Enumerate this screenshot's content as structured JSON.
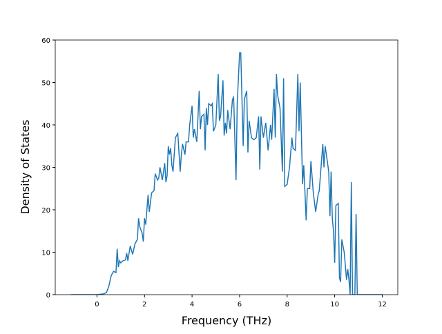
{
  "chart_data": {
    "type": "line",
    "xlabel": "Frequency (THz)",
    "ylabel": "Density of States",
    "xlim": [
      -1.755,
      12.655
    ],
    "ylim": [
      0,
      60
    ],
    "xticks": [
      0,
      2,
      4,
      6,
      8,
      10,
      12
    ],
    "yticks": [
      0,
      10,
      20,
      30,
      40,
      50,
      60
    ],
    "series": [
      {
        "color": "#1f77b4",
        "x": [
          -1.1,
          0,
          0.3,
          0.4,
          0.5,
          0.6,
          0.7,
          0.8,
          0.85,
          0.9,
          0.95,
          1.0,
          1.1,
          1.2,
          1.25,
          1.3,
          1.4,
          1.5,
          1.6,
          1.7,
          1.75,
          1.8,
          1.9,
          1.95,
          2.0,
          2.05,
          2.1,
          2.15,
          2.2,
          2.3,
          2.4,
          2.45,
          2.55,
          2.6,
          2.65,
          2.75,
          2.85,
          2.9,
          2.95,
          3.0,
          3.05,
          3.1,
          3.15,
          3.2,
          3.3,
          3.4,
          3.5,
          3.55,
          3.6,
          3.7,
          3.75,
          3.85,
          3.9,
          4.0,
          4.05,
          4.1,
          4.2,
          4.3,
          4.35,
          4.4,
          4.5,
          4.55,
          4.6,
          4.65,
          4.7,
          4.8,
          4.85,
          4.9,
          5.0,
          5.1,
          5.15,
          5.2,
          5.3,
          5.35,
          5.4,
          5.45,
          5.5,
          5.6,
          5.7,
          5.75,
          5.85,
          5.9,
          6.0,
          6.05,
          6.15,
          6.2,
          6.3,
          6.35,
          6.4,
          6.5,
          6.6,
          6.7,
          6.8,
          6.85,
          6.9,
          7.0,
          7.1,
          7.2,
          7.3,
          7.35,
          7.45,
          7.5,
          7.55,
          7.6,
          7.7,
          7.8,
          7.85,
          7.9,
          8.0,
          8.1,
          8.2,
          8.25,
          8.35,
          8.45,
          8.5,
          8.55,
          8.65,
          8.7,
          8.8,
          8.85,
          8.95,
          9.0,
          9.1,
          9.2,
          9.3,
          9.35,
          9.5,
          9.55,
          9.6,
          9.7,
          9.75,
          9.8,
          9.85,
          9.9,
          9.95,
          10.0,
          10.05,
          10.15,
          10.2,
          10.25,
          10.3,
          10.4,
          10.5,
          10.55,
          10.6,
          10.65,
          10.7,
          10.75,
          10.85,
          10.9,
          10.95,
          11.0,
          12.0
        ],
        "values": [
          0,
          0,
          0.2,
          0.5,
          2,
          4.5,
          5.5,
          5.2,
          10.8,
          6.5,
          8,
          7.5,
          8,
          8.2,
          9.8,
          8,
          11.5,
          9.5,
          12,
          13,
          18,
          16,
          14.5,
          12.5,
          18,
          16.5,
          20,
          23.5,
          19.5,
          24,
          24.5,
          28.5,
          27,
          27.5,
          30,
          27,
          31,
          26.5,
          28,
          35,
          33,
          34.5,
          30.5,
          29,
          37,
          38,
          29,
          33,
          35.5,
          33,
          36,
          36,
          40,
          44.5,
          37,
          39,
          36,
          48,
          39,
          42,
          42.5,
          34,
          44,
          40,
          45,
          44.5,
          45,
          38.5,
          40,
          52,
          41,
          42,
          50.5,
          37.5,
          40.5,
          38,
          43.5,
          39,
          46,
          46.5,
          27,
          45,
          57,
          57,
          35,
          46,
          48,
          33.5,
          41,
          37,
          36.5,
          37,
          42,
          29.5,
          42,
          37,
          40.5,
          34,
          40,
          36.5,
          48.5,
          37,
          52,
          47,
          44,
          29,
          51,
          25.5,
          26,
          30,
          37,
          34.5,
          34,
          52,
          38.5,
          50,
          26,
          30.5,
          17.5,
          25,
          25,
          31.5,
          24,
          19.5,
          23.5,
          24.5,
          35.5,
          30,
          35,
          31,
          29,
          18.5,
          29,
          18,
          15,
          7.5,
          21,
          21.5,
          4,
          3,
          13,
          10,
          3.5,
          6,
          3.5,
          0,
          26.5,
          0,
          0,
          19,
          0,
          0,
          0
        ]
      }
    ]
  }
}
